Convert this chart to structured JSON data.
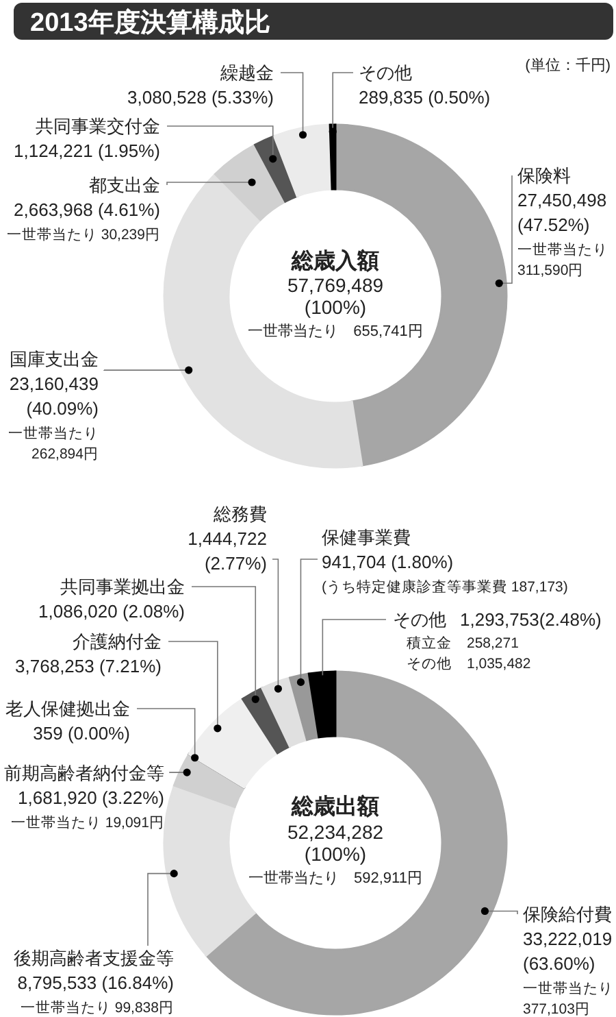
{
  "chart_data": [
    {
      "type": "donut",
      "title": "2013年度決算構成比",
      "categories": [
        "保険料",
        "国庫支出金",
        "都支出金",
        "共同事業交付金",
        "繰越金",
        "その他"
      ],
      "values": [
        27450498,
        23160439,
        2663968,
        1124221,
        3080528,
        289835
      ],
      "colors": [
        "#a6a6a6",
        "#e2e2e2",
        "#d0d0d0",
        "#555555",
        "#ebebeb",
        "#000000"
      ],
      "value_labels": [
        "27,450,498\n(47.52%)\n一世帯当たり\n311,590円",
        "23,160,439\n(40.09%)\n一世帯当たり\n262,894円",
        "2,663,968 (4.61%)\n一世帯当たり 30,239円",
        "1,124,221 (1.95%)",
        "3,080,528 (5.33%)",
        "289,835 (0.50%)"
      ],
      "annotations": [
        "(単位：千円)",
        "総歳入額",
        "57,769,489",
        "(100%)",
        "一世帯当たり　655,741円"
      ]
    },
    {
      "type": "donut",
      "categories": [
        "保険給付費",
        "後期高齢者支援金等",
        "前期高齢者納付金等",
        "老人保健拠出金",
        "介護納付金",
        "共同事業拠出金",
        "総務費",
        "保健事業費",
        "その他"
      ],
      "values": [
        33222019,
        8795533,
        1681920,
        359,
        3768253,
        1086020,
        1444722,
        941704,
        1293753
      ],
      "colors": [
        "#a6a6a6",
        "#e2e2e2",
        "#d0d0d0",
        "#000000",
        "#efefef",
        "#555555",
        "#e0e0e0",
        "#999999",
        "#000000"
      ],
      "value_labels": [
        "33,222,019\n(63.60%)\n一世帯当たり\n377,103円",
        "8,795,533 (16.84%)\n一世帯当たり 99,838円",
        "1,681,920 (3.22%)\n一世帯当たり 19,091円",
        "359 (0.00%)",
        "3,768,253 (7.21%)",
        "1,086,020 (2.08%)",
        "1,444,722\n(2.77%)",
        "941,704 (1.80%)\n(うち特定健康診査等事業費 187,173)",
        "1,293,753(2.48%)\n積立金　258,271\nその他　1,035,482"
      ],
      "annotations": [
        "総歳出額",
        "52,234,282",
        "(100%)",
        "一世帯当たり　592,911円"
      ]
    }
  ]
}
